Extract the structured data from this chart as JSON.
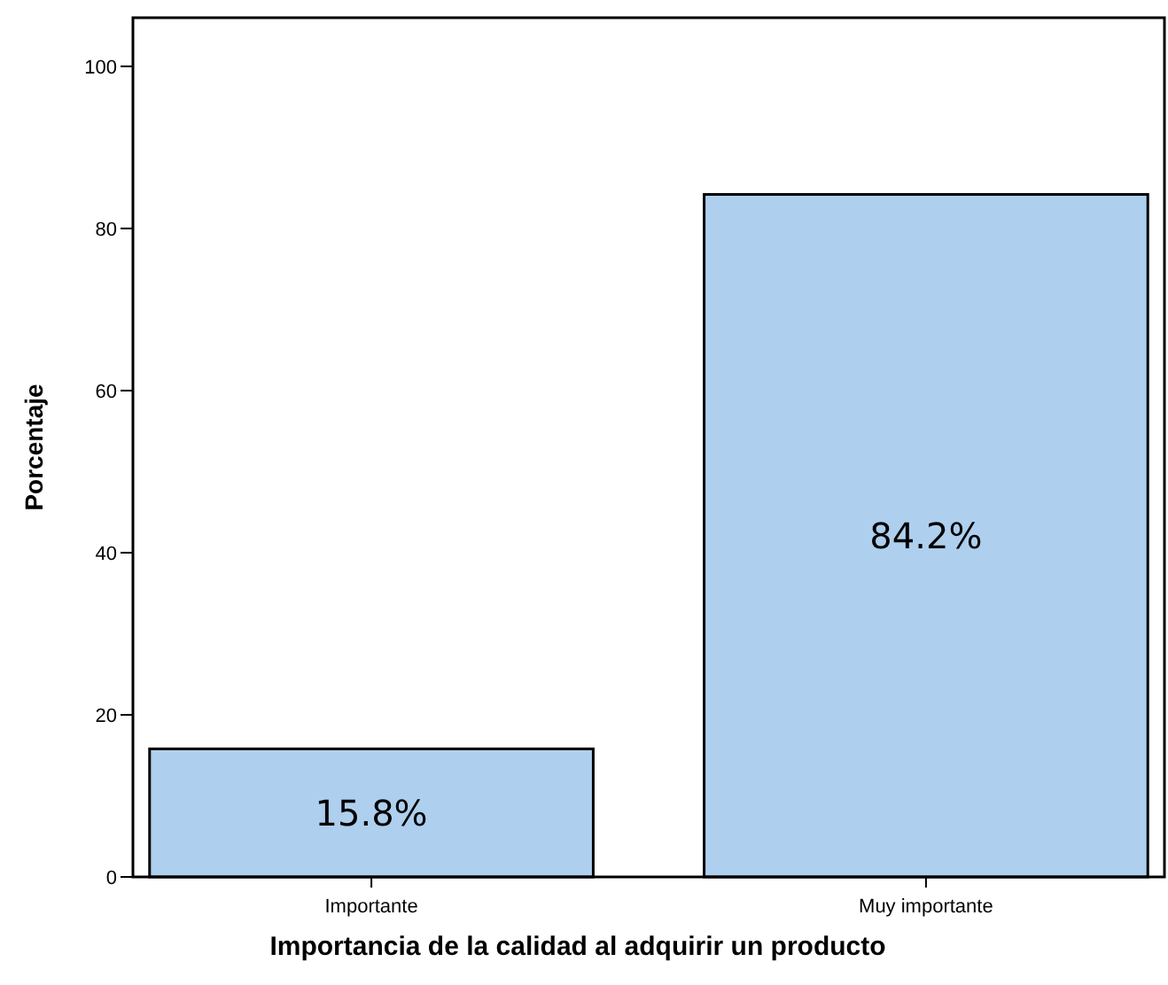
{
  "chart_data": {
    "type": "bar",
    "xlabel": "Importancia de la calidad al adquirir un producto",
    "ylabel": "Porcentaje",
    "categories": [
      "Importante",
      "Muy importante"
    ],
    "values": [
      15.8,
      84.2
    ],
    "value_labels": [
      "15.8%",
      "84.2%"
    ],
    "color": "#aecfee",
    "ylim": [
      0,
      106
    ],
    "yticks": [
      0,
      20,
      40,
      60,
      80,
      100
    ],
    "grid": false
  }
}
